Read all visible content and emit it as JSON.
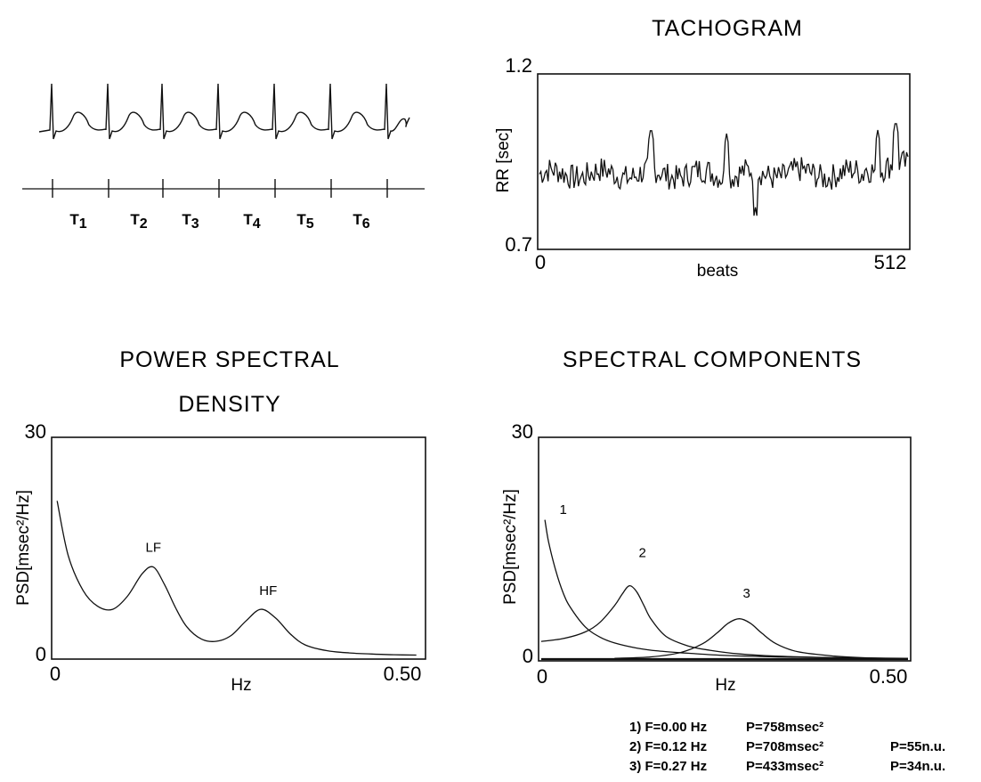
{
  "ecg": {
    "intervals": [
      {
        "main": "T",
        "sub": "1"
      },
      {
        "main": "T",
        "sub": "2"
      },
      {
        "main": "T",
        "sub": "3"
      },
      {
        "main": "T",
        "sub": "4"
      },
      {
        "main": "T",
        "sub": "5"
      },
      {
        "main": "T",
        "sub": "6"
      }
    ]
  },
  "chart_data": [
    {
      "id": "tachogram",
      "type": "line",
      "title": "TACHOGRAM",
      "xlabel": "beats",
      "ylabel": "RR [sec]",
      "xlim": [
        0,
        512
      ],
      "ylim": [
        0.7,
        1.2
      ],
      "xtick_labels": [
        "0",
        "512"
      ],
      "ytick_labels": [
        "1.2",
        "0.7"
      ],
      "baseline": 0.915,
      "spikes": [
        {
          "x": 155,
          "y": 1.05
        },
        {
          "x": 260,
          "y": 1.03
        },
        {
          "x": 300,
          "y": 0.82
        },
        {
          "x": 470,
          "y": 1.02
        },
        {
          "x": 495,
          "y": 1.05
        }
      ],
      "grid": false
    },
    {
      "id": "psd",
      "type": "line",
      "title_line1": "POWER SPECTRAL",
      "title_line2": "DENSITY",
      "xlabel": "Hz",
      "ylabel": "PSD[msec²/Hz]",
      "xlim": [
        0,
        0.5
      ],
      "ylim": [
        0,
        30
      ],
      "xtick_labels": [
        "0",
        "0.50"
      ],
      "ytick_labels": [
        "30",
        "0"
      ],
      "x": [
        0.005,
        0.02,
        0.04,
        0.06,
        0.08,
        0.1,
        0.12,
        0.135,
        0.15,
        0.165,
        0.18,
        0.2,
        0.22,
        0.24,
        0.26,
        0.28,
        0.3,
        0.32,
        0.34,
        0.37,
        0.4,
        0.43,
        0.46,
        0.49
      ],
      "y": [
        21.5,
        14,
        9.2,
        7,
        6.6,
        8.4,
        11.5,
        12.4,
        10,
        6.8,
        4.2,
        2.5,
        2.2,
        3,
        5,
        6.6,
        5.4,
        3.2,
        1.7,
        0.9,
        0.6,
        0.45,
        0.35,
        0.3
      ],
      "annotations": [
        {
          "text": "LF",
          "x": 0.135,
          "y": 14.5
        },
        {
          "text": "HF",
          "x": 0.29,
          "y": 8.6
        }
      ],
      "grid": false
    },
    {
      "id": "components",
      "type": "line",
      "title": "SPECTRAL COMPONENTS",
      "xlabel": "Hz",
      "ylabel": "PSD[msec²/Hz]",
      "xlim": [
        0,
        0.5
      ],
      "ylim": [
        0,
        30
      ],
      "xtick_labels": [
        "0",
        "0.50"
      ],
      "ytick_labels": [
        "30",
        "0"
      ],
      "series": [
        {
          "name": "1",
          "x": [
            0.005,
            0.01,
            0.02,
            0.03,
            0.04,
            0.06,
            0.08,
            0.1,
            0.13,
            0.16,
            0.2,
            0.25,
            0.3,
            0.35,
            0.4,
            0.45,
            0.5
          ],
          "y": [
            19,
            16,
            12,
            9,
            7,
            4.4,
            3,
            2.2,
            1.5,
            1.1,
            0.8,
            0.5,
            0.35,
            0.25,
            0.18,
            0.12,
            0.08
          ]
        },
        {
          "name": "2",
          "x": [
            0,
            0.03,
            0.06,
            0.08,
            0.1,
            0.11,
            0.12,
            0.13,
            0.14,
            0.15,
            0.17,
            0.2,
            0.23,
            0.27,
            0.32,
            0.4,
            0.5
          ],
          "y": [
            2.4,
            2.8,
            3.7,
            5,
            7.3,
            8.8,
            10,
            9.2,
            7.3,
            5.4,
            3.1,
            1.8,
            1.2,
            0.7,
            0.4,
            0.2,
            0.1
          ]
        },
        {
          "name": "3",
          "x": [
            0.1,
            0.15,
            0.19,
            0.22,
            0.24,
            0.255,
            0.27,
            0.285,
            0.3,
            0.32,
            0.35,
            0.4,
            0.45,
            0.5
          ],
          "y": [
            0.1,
            0.3,
            0.9,
            2.1,
            3.6,
            4.9,
            5.5,
            4.9,
            3.6,
            2.1,
            1,
            0.4,
            0.15,
            0.05
          ]
        }
      ],
      "annotations": [
        {
          "text": "1",
          "x": 0.03,
          "y": 19.8
        },
        {
          "text": "2",
          "x": 0.138,
          "y": 13.9
        },
        {
          "text": "3",
          "x": 0.28,
          "y": 8.4
        }
      ],
      "grid": false
    }
  ],
  "legend": {
    "rows": [
      {
        "label": "1) F=0.00 Hz",
        "power": "P=758msec²",
        "nu": ""
      },
      {
        "label": "2) F=0.12 Hz",
        "power": "P=708msec²",
        "nu": "P=55n.u."
      },
      {
        "label": "3) F=0.27 Hz",
        "power": "P=433msec²",
        "nu": "P=34n.u."
      }
    ]
  }
}
